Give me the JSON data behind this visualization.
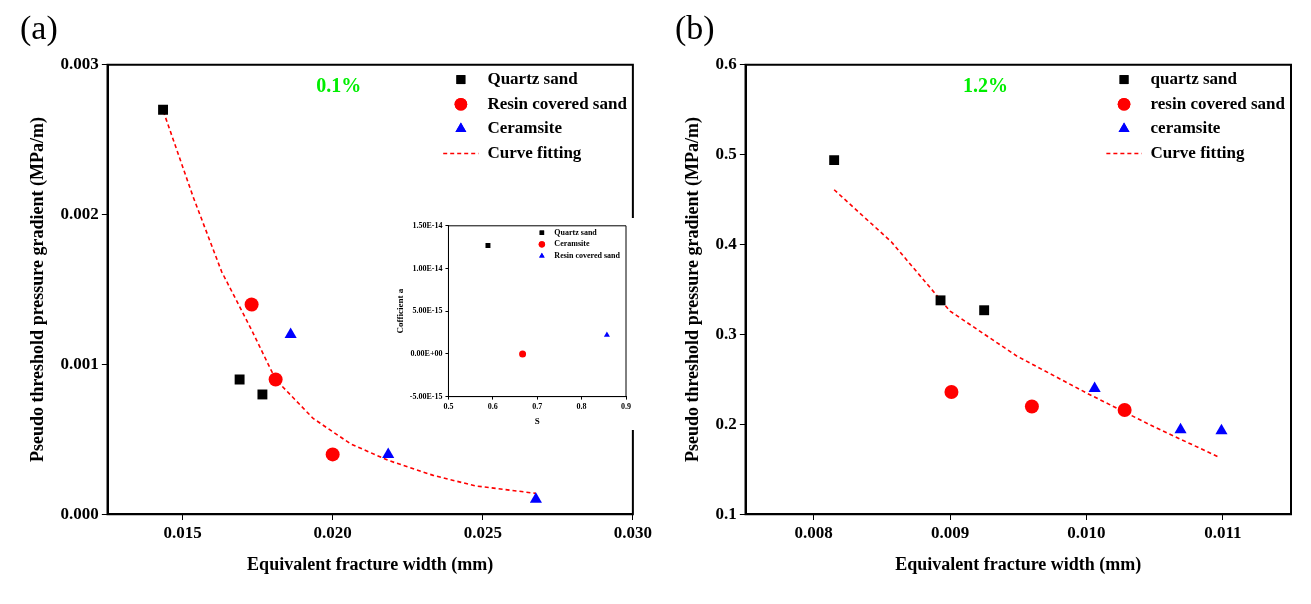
{
  "chart_data": [
    {
      "type": "scatter",
      "title": "(a)",
      "xlabel": "Equivalent fracture width (mm)",
      "ylabel": "Pseudo threshold pressure gradient (MPa/m)",
      "annotations": [
        "0.1%"
      ],
      "xlim": [
        0.0125,
        0.03
      ],
      "xticks": [
        {
          "value": 0.015,
          "label": "0.015"
        },
        {
          "value": 0.02,
          "label": "0.020"
        },
        {
          "value": 0.025,
          "label": "0.025"
        },
        {
          "value": 0.03,
          "label": "0.030"
        }
      ],
      "ylim": [
        0,
        0.003
      ],
      "yticks": [
        {
          "value": 0,
          "label": "0.000"
        },
        {
          "value": 0.001,
          "label": "0.001"
        },
        {
          "value": 0.002,
          "label": "0.002"
        },
        {
          "value": 0.003,
          "label": "0.003"
        }
      ],
      "legend": "top right",
      "series": [
        {
          "name": "Quartz sand",
          "type": "scatter",
          "marker": "square",
          "color": "#000000",
          "x": [
            0.01435,
            0.0169,
            0.01766
          ],
          "values": [
            0.0027,
            0.0009,
            0.0008
          ]
        },
        {
          "name": "Resin covered sand",
          "type": "scatter",
          "marker": "circle",
          "color": "#ff0000",
          "x": [
            0.0173,
            0.0181,
            0.02
          ],
          "values": [
            0.0014,
            0.0009,
            0.0004
          ]
        },
        {
          "name": "Ceramsite",
          "type": "scatter",
          "marker": "triangle",
          "color": "#0000ff",
          "x": [
            0.0186,
            0.02185,
            0.02677
          ],
          "values": [
            0.0012,
            0.0004,
            0.0001
          ]
        },
        {
          "name": "Curve fitting",
          "type": "line",
          "marker": "none",
          "line_style": "dashed",
          "color": "#ff0000",
          "x": [
            0.01436,
            0.01535,
            0.0163,
            0.0173,
            0.0181,
            0.01935,
            0.0206,
            0.02185,
            0.02335,
            0.02475,
            0.02677
          ],
          "values": [
            0.00269,
            0.00212,
            0.00162,
            0.00123,
            0.0009,
            0.00064,
            0.00047,
            0.00036,
            0.00026,
            0.00019,
            0.00014
          ]
        }
      ]
    },
    {
      "type": "scatter",
      "xlabel": "S",
      "ylabel": "Cofficient a",
      "xlim": [
        0.5,
        0.9
      ],
      "xticks": [
        0.5,
        0.6,
        0.7,
        0.8,
        0.9
      ],
      "ylim": [
        -5e-15,
        1.5e-14
      ],
      "yticks": [
        {
          "value": -5e-15,
          "label": "-5.00E-15"
        },
        {
          "value": 0,
          "label": "0.00E+00"
        },
        {
          "value": 5e-15,
          "label": "5.00E-15"
        },
        {
          "value": 1e-14,
          "label": "1.00E-14"
        },
        {
          "value": 1.5e-14,
          "label": "1.50E-14"
        }
      ],
      "legend": "top right",
      "series": [
        {
          "name": "Quartz sand",
          "type": "scatter",
          "marker": "square",
          "color": "#000000",
          "x": [
            0.589
          ],
          "values": [
            1.27e-14
          ]
        },
        {
          "name": "Ceramsite",
          "type": "scatter",
          "marker": "circle",
          "color": "#ff0000",
          "x": [
            0.667
          ],
          "values": [
            0
          ]
        },
        {
          "name": "Resin covered sand",
          "type": "scatter",
          "marker": "triangle",
          "color": "#0000ff",
          "x": [
            0.857
          ],
          "values": [
            2.2e-15
          ]
        }
      ]
    },
    {
      "type": "scatter",
      "title": "(b)",
      "xlabel": "Equivalent fracture width (mm)",
      "ylabel": "Pseudo threshold pressure gradient (MPa/m)",
      "annotations": [
        "1.2%"
      ],
      "xlim": [
        0.0075,
        0.0115
      ],
      "xticks": [
        0.008,
        0.009,
        {
          "value": 0.01,
          "label": "0.010"
        },
        0.011
      ],
      "ylim": [
        0.1,
        0.6
      ],
      "yticks": [
        0.1,
        0.2,
        0.3,
        0.4,
        0.5,
        0.6
      ],
      "legend": "top right",
      "series": [
        {
          "name": "quartz sand",
          "type": "scatter",
          "marker": "square",
          "color": "#000000",
          "x": [
            0.00815,
            0.00893,
            0.00925
          ],
          "values": [
            0.494,
            0.338,
            0.327
          ]
        },
        {
          "name": "resin covered sand",
          "type": "scatter",
          "marker": "circle",
          "color": "#ff0000",
          "x": [
            0.00901,
            0.0096,
            0.01028
          ],
          "values": [
            0.236,
            0.22,
            0.216
          ]
        },
        {
          "name": "ceramsite",
          "type": "scatter",
          "marker": "triangle",
          "color": "#0000ff",
          "x": [
            0.01006,
            0.01069,
            0.01099
          ],
          "values": [
            0.24,
            0.194,
            0.193
          ]
        },
        {
          "name": "Curve fitting",
          "type": "line",
          "marker": "none",
          "line_style": "dashed",
          "color": "#ff0000",
          "x": [
            0.00815,
            0.00857,
            0.009,
            0.00949,
            0.01,
            0.0105,
            0.01098
          ],
          "values": [
            0.461,
            0.403,
            0.326,
            0.276,
            0.235,
            0.197,
            0.163
          ]
        }
      ]
    }
  ]
}
